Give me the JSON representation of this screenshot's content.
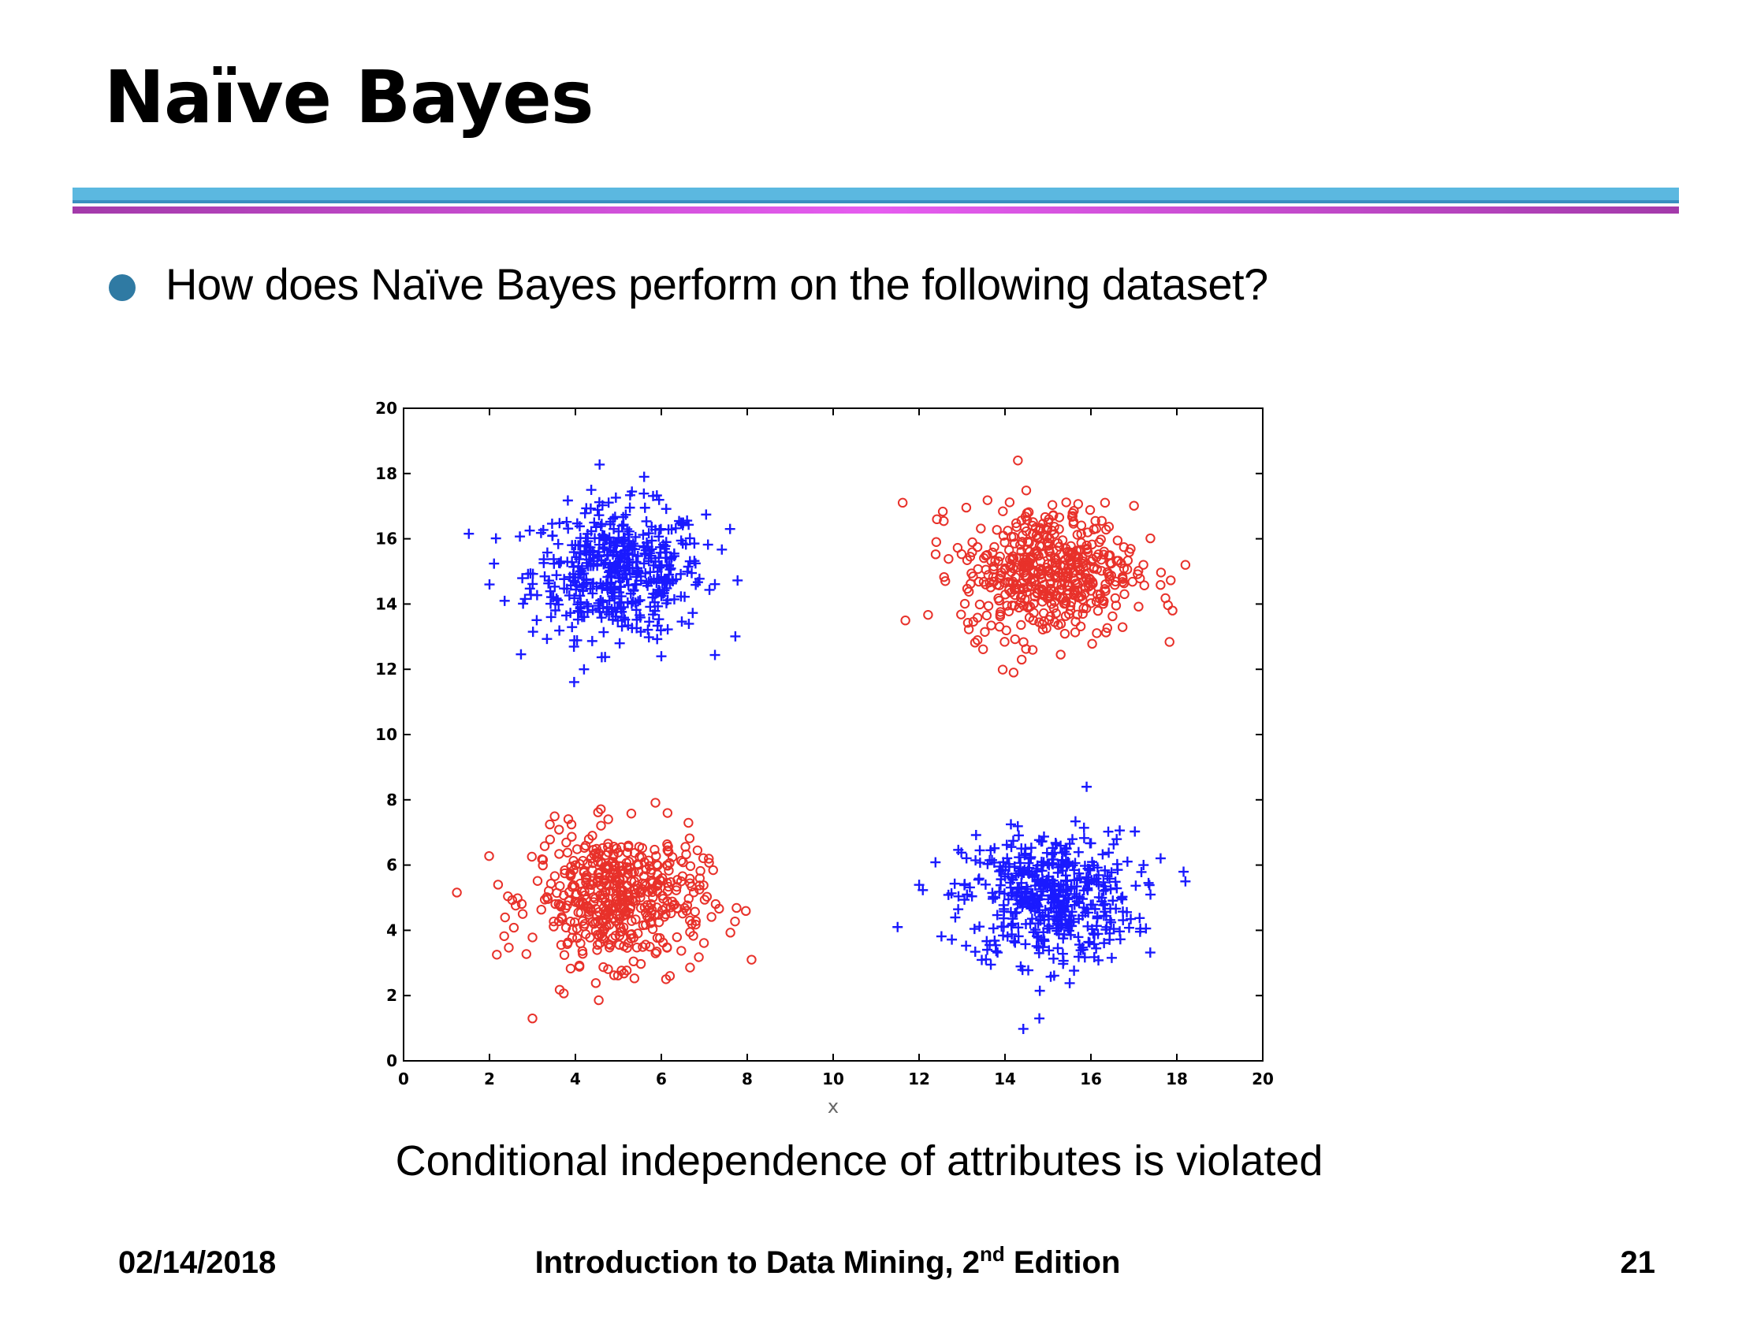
{
  "slide": {
    "title": "Naïve Bayes",
    "bullet": "How does Naïve Bayes perform on the following dataset?",
    "caption": "Conditional independence of attributes is violated"
  },
  "footer": {
    "date": "02/14/2018",
    "course_title": "Introduction to Data Mining, 2",
    "course_sup": "nd",
    "course_suffix": " Edition",
    "page_number": "21"
  },
  "colors": {
    "plus_class": "#1a1aff",
    "circle_class": "#e8312a",
    "title_rule_blue": "#5bb8e0",
    "title_rule_purple": "#d34fe0",
    "bullet": "#2f7aa3"
  },
  "chart_data": {
    "type": "scatter",
    "title": "",
    "xlabel": "x",
    "ylabel": "",
    "xlim": [
      0,
      20
    ],
    "ylim": [
      0,
      20
    ],
    "xticks": [
      0,
      2,
      4,
      6,
      8,
      10,
      12,
      14,
      16,
      18,
      20
    ],
    "yticks": [
      0,
      2,
      4,
      6,
      8,
      10,
      12,
      14,
      16,
      18,
      20
    ],
    "grid": false,
    "series": [
      {
        "marker": "plus",
        "color": "#1a1aff",
        "clusters": [
          {
            "center": [
              5,
              15
            ],
            "std": [
              1.0,
              1.0
            ],
            "count": 500
          },
          {
            "center": [
              15,
              5
            ],
            "std": [
              1.0,
              1.0
            ],
            "count": 500
          }
        ],
        "points": [
          [
            2,
            14.6
          ],
          [
            11.5,
            4.1
          ],
          [
            15.9,
            8.4
          ],
          [
            14.8,
            1.3
          ],
          [
            4.2,
            12
          ],
          [
            6,
            12.4
          ],
          [
            18.2,
            5.5
          ],
          [
            5.6,
            17.9
          ],
          [
            7.6,
            16.3
          ]
        ]
      },
      {
        "marker": "circle",
        "color": "#e8312a",
        "clusters": [
          {
            "center": [
              5,
              5
            ],
            "std": [
              1.0,
              1.0
            ],
            "count": 500
          },
          {
            "center": [
              15,
              15
            ],
            "std": [
              1.0,
              1.0
            ],
            "count": 500
          }
        ],
        "points": [
          [
            3,
            1.3
          ],
          [
            8.1,
            3.1
          ],
          [
            14.3,
            18.4
          ],
          [
            18.2,
            15.2
          ],
          [
            17.9,
            13.8
          ],
          [
            12.4,
            15.9
          ],
          [
            14.2,
            11.9
          ],
          [
            6.2,
            2.6
          ],
          [
            2.2,
            5.4
          ]
        ]
      }
    ]
  }
}
